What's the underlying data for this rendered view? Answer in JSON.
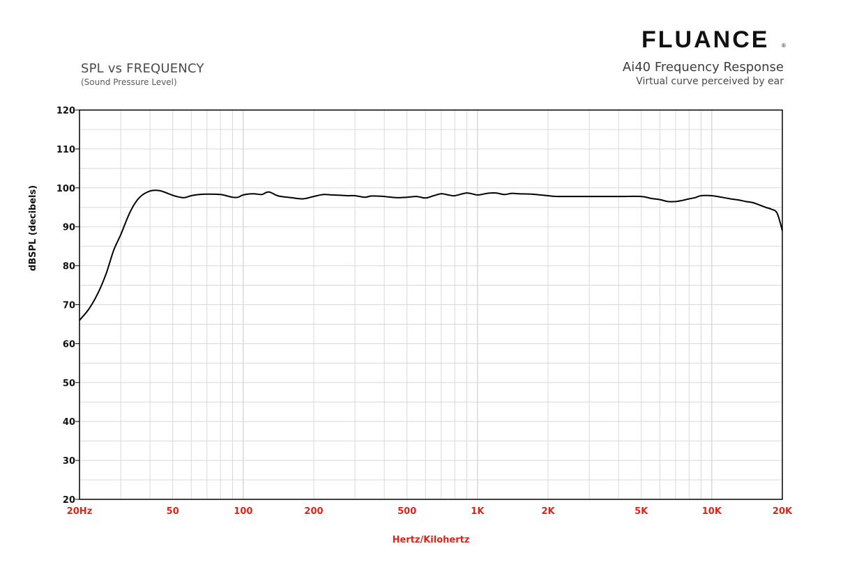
{
  "brand": {
    "name": "FLUANCE",
    "registered_mark": "®"
  },
  "header": {
    "left_title": "SPL vs FREQUENCY",
    "left_subtitle": "(Sound Pressure Level)",
    "right_title": "Ai40 Frequency Response",
    "right_subtitle": "Virtual curve perceived by ear"
  },
  "colors": {
    "curve": "#000000",
    "x_tick_label": "#d9261c",
    "y_tick_label": "#111111",
    "grid": "#d8d8d8",
    "grid_major": "#c4c4c4"
  },
  "chart_data": {
    "type": "line",
    "xlabel": "Hertz/Kilohertz",
    "ylabel": "dBSPL (decibels)",
    "xscale": "log",
    "xlim": [
      20,
      20000
    ],
    "ylim": [
      20,
      120
    ],
    "grid": true,
    "x_ticks": [
      {
        "value": 20,
        "label": "20Hz"
      },
      {
        "value": 50,
        "label": "50"
      },
      {
        "value": 100,
        "label": "100"
      },
      {
        "value": 200,
        "label": "200"
      },
      {
        "value": 500,
        "label": "500"
      },
      {
        "value": 1000,
        "label": "1K"
      },
      {
        "value": 2000,
        "label": "2K"
      },
      {
        "value": 5000,
        "label": "5K"
      },
      {
        "value": 10000,
        "label": "10K"
      },
      {
        "value": 20000,
        "label": "20K"
      }
    ],
    "y_ticks": [
      20,
      30,
      40,
      50,
      60,
      70,
      80,
      90,
      100,
      110,
      120
    ],
    "series": [
      {
        "x": [
          20,
          22,
          24,
          26,
          28,
          30,
          33,
          36,
          40,
          44,
          48,
          52,
          56,
          60,
          65,
          70,
          80,
          90,
          95,
          100,
          110,
          120,
          125,
          130,
          140,
          150,
          160,
          180,
          200,
          220,
          240,
          260,
          280,
          300,
          330,
          350,
          370,
          400,
          450,
          500,
          550,
          600,
          650,
          700,
          750,
          800,
          900,
          1000,
          1100,
          1200,
          1300,
          1400,
          1500,
          1700,
          2000,
          2200,
          3000,
          4000,
          5000,
          5500,
          6000,
          6500,
          7000,
          7500,
          8000,
          8500,
          9000,
          10000,
          11000,
          12000,
          13000,
          14000,
          15000,
          16000,
          17000,
          18000,
          19000,
          20000
        ],
        "y": [
          66,
          69,
          73,
          78,
          84,
          88,
          94,
          97.5,
          99.2,
          99.3,
          98.5,
          97.8,
          97.5,
          98,
          98.3,
          98.4,
          98.3,
          97.6,
          97.6,
          98.2,
          98.5,
          98.3,
          98.8,
          98.9,
          98,
          97.7,
          97.5,
          97.2,
          97.8,
          98.3,
          98.2,
          98.1,
          98,
          98,
          97.6,
          97.9,
          97.9,
          97.8,
          97.5,
          97.6,
          97.8,
          97.4,
          98,
          98.5,
          98.2,
          98,
          98.7,
          98.2,
          98.6,
          98.7,
          98.3,
          98.6,
          98.5,
          98.4,
          98,
          97.8,
          97.8,
          97.8,
          97.8,
          97.3,
          97,
          96.5,
          96.5,
          96.8,
          97.2,
          97.5,
          98,
          98,
          97.6,
          97.2,
          96.9,
          96.5,
          96.2,
          95.6,
          95,
          94.5,
          93.5,
          89
        ]
      }
    ]
  }
}
